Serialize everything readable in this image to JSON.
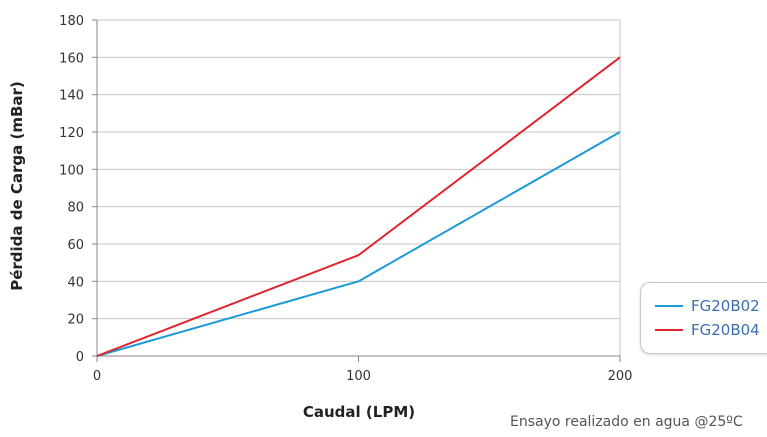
{
  "chart_data": {
    "type": "line",
    "title": "",
    "xlabel": "Caudal (LPM)",
    "ylabel": "Pérdida de Carga (mBar)",
    "x": [
      0,
      100,
      200
    ],
    "xticks": [
      "0",
      "100",
      "200"
    ],
    "yticks": [
      "0",
      "20",
      "40",
      "60",
      "80",
      "100",
      "120",
      "140",
      "160",
      "180"
    ],
    "xlim": [
      0,
      200
    ],
    "ylim": [
      0,
      180
    ],
    "grid": true,
    "legend_position": "bottom-right",
    "series": [
      {
        "name": "FG20B02",
        "color": "#1a9ad6",
        "values": [
          0,
          40,
          120
        ]
      },
      {
        "name": "FG20B04",
        "color": "#e0252e",
        "values": [
          0,
          54,
          160
        ]
      }
    ]
  },
  "footnote": "Ensayo realizado en agua @25ºC"
}
